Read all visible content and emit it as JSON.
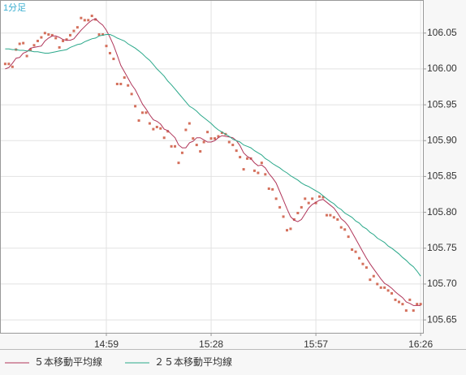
{
  "chart_data": {
    "type": "line",
    "title": "1分足",
    "categories": [
      null,
      null,
      null,
      null,
      null,
      null,
      null,
      null,
      null,
      null,
      null,
      null,
      null,
      null,
      null,
      null,
      null,
      null,
      null,
      null,
      null,
      null,
      null,
      null,
      null,
      null,
      null,
      null,
      "14:59",
      null,
      null,
      null,
      null,
      null,
      null,
      null,
      null,
      null,
      null,
      null,
      null,
      null,
      null,
      null,
      null,
      null,
      null,
      null,
      null,
      null,
      null,
      null,
      null,
      null,
      null,
      null,
      null,
      "15:28",
      null,
      null,
      null,
      null,
      null,
      null,
      null,
      null,
      null,
      null,
      null,
      null,
      null,
      null,
      null,
      null,
      null,
      null,
      null,
      null,
      null,
      null,
      null,
      null,
      null,
      null,
      null,
      null,
      "15:57",
      null,
      null,
      null,
      null,
      null,
      null,
      null,
      null,
      null,
      null,
      null,
      null,
      null,
      null,
      null,
      null,
      null,
      null,
      null,
      null,
      null,
      null,
      null,
      null,
      null,
      null,
      null,
      null,
      "16:26"
    ],
    "series": [
      {
        "type": "scatter",
        "color": "#d4705c",
        "values": [
          106.007,
          106.007,
          106.003,
          106.027,
          106.035,
          106.036,
          106.018,
          106.027,
          106.033,
          106.039,
          106.044,
          106.05,
          106.048,
          106.047,
          106.043,
          106.03,
          106.039,
          106.041,
          106.047,
          106.053,
          106.058,
          106.071,
          106.068,
          106.068,
          106.074,
          106.069,
          106.048,
          106.048,
          106.032,
          106.022,
          106.014,
          105.979,
          105.979,
          105.988,
          105.977,
          105.965,
          105.948,
          105.928,
          105.939,
          105.939,
          105.924,
          105.916,
          105.919,
          105.917,
          105.904,
          105.913,
          105.892,
          105.892,
          105.869,
          105.883,
          105.915,
          105.924,
          105.903,
          105.894,
          105.885,
          105.898,
          105.912,
          105.903,
          105.903,
          105.906,
          105.911,
          105.909,
          105.898,
          105.894,
          105.886,
          105.877,
          105.86,
          105.875,
          105.875,
          105.858,
          105.855,
          105.869,
          105.853,
          105.833,
          105.832,
          105.819,
          105.807,
          105.794,
          105.775,
          105.777,
          105.79,
          105.799,
          105.807,
          105.819,
          105.813,
          105.819,
          105.813,
          105.822,
          105.821,
          105.796,
          105.796,
          105.793,
          105.79,
          105.779,
          105.776,
          105.766,
          105.748,
          105.745,
          105.736,
          105.728,
          105.723,
          105.706,
          105.711,
          105.7,
          105.695,
          105.695,
          105.691,
          105.687,
          105.678,
          105.675,
          105.672,
          105.663,
          105.678,
          105.663,
          105.672,
          105.672
        ]
      },
      {
        "type": "line",
        "name": "５本移動平均線",
        "color": "#b0365a",
        "values": [
          106.0,
          106.002,
          106.008,
          106.015,
          106.016,
          106.022,
          106.024,
          106.029,
          106.03,
          106.031,
          106.032,
          106.039,
          106.043,
          106.046,
          106.046,
          106.044,
          106.041,
          106.04,
          106.04,
          106.042,
          106.048,
          106.054,
          106.059,
          106.064,
          106.068,
          106.07,
          106.065,
          106.061,
          106.054,
          106.044,
          106.033,
          106.019,
          106.005,
          105.996,
          105.987,
          105.978,
          105.971,
          105.961,
          105.951,
          105.944,
          105.936,
          105.929,
          105.927,
          105.923,
          105.916,
          105.914,
          105.909,
          105.904,
          105.894,
          105.89,
          105.89,
          105.897,
          105.899,
          105.904,
          105.904,
          105.901,
          105.898,
          105.898,
          105.9,
          105.904,
          105.907,
          105.906,
          105.905,
          105.904,
          105.9,
          105.893,
          105.883,
          105.878,
          105.875,
          105.869,
          105.865,
          105.866,
          105.862,
          105.854,
          105.848,
          105.841,
          105.829,
          105.817,
          105.805,
          105.794,
          105.789,
          105.787,
          105.79,
          105.798,
          105.806,
          105.811,
          105.814,
          105.817,
          105.818,
          105.814,
          105.81,
          105.806,
          105.799,
          105.791,
          105.787,
          105.781,
          105.772,
          105.763,
          105.754,
          105.745,
          105.736,
          105.728,
          105.721,
          105.714,
          105.707,
          105.701,
          105.698,
          105.694,
          105.689,
          105.685,
          105.681,
          105.675,
          105.673,
          105.67,
          105.67,
          105.67
        ]
      },
      {
        "type": "line",
        "name": "２５本移動平均線",
        "color": "#2aa88a",
        "values": [
          106.028,
          106.028,
          106.027,
          106.027,
          106.026,
          106.026,
          106.025,
          106.025,
          106.024,
          106.024,
          106.023,
          106.022,
          106.022,
          106.023,
          106.024,
          106.025,
          106.026,
          106.027,
          106.03,
          106.032,
          106.034,
          106.035,
          106.038,
          106.04,
          106.042,
          106.043,
          106.046,
          106.047,
          106.048,
          106.048,
          106.046,
          106.043,
          106.041,
          106.039,
          106.035,
          106.032,
          106.029,
          106.025,
          106.021,
          106.016,
          106.012,
          106.006,
          106.0,
          105.995,
          105.99,
          105.983,
          105.978,
          105.972,
          105.966,
          105.96,
          105.954,
          105.948,
          105.945,
          105.941,
          105.936,
          105.932,
          105.928,
          105.924,
          105.919,
          105.915,
          105.912,
          105.909,
          105.906,
          105.902,
          105.9,
          105.898,
          105.894,
          105.892,
          105.89,
          105.886,
          105.883,
          105.88,
          105.875,
          105.872,
          105.868,
          105.865,
          105.862,
          105.858,
          105.855,
          105.851,
          105.848,
          105.845,
          105.841,
          105.838,
          105.836,
          105.833,
          105.83,
          105.827,
          105.823,
          105.819,
          105.815,
          105.812,
          105.807,
          105.804,
          105.799,
          105.796,
          105.793,
          105.788,
          105.785,
          105.78,
          105.777,
          105.772,
          105.769,
          105.764,
          105.761,
          105.758,
          105.753,
          105.75,
          105.746,
          105.742,
          105.737,
          105.733,
          105.728,
          105.724,
          105.718,
          105.711
        ]
      }
    ],
    "ylim": [
      105.632,
      106.095
    ],
    "yticks": [
      106.05,
      {
        "value": 106.0,
        "label": "106.00"
      },
      105.95,
      {
        "value": 105.9,
        "label": "105.90"
      },
      105.85,
      {
        "value": 105.8,
        "label": "105.80"
      },
      105.75,
      {
        "value": 105.7,
        "label": "105.70"
      },
      105.65
    ],
    "grid": true
  }
}
